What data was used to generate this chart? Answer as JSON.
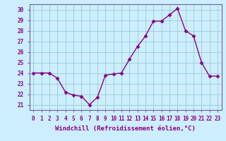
{
  "x": [
    0,
    1,
    2,
    3,
    4,
    5,
    6,
    7,
    8,
    9,
    10,
    11,
    12,
    13,
    14,
    15,
    16,
    17,
    18,
    19,
    20,
    21,
    22,
    23
  ],
  "y": [
    24,
    24,
    24,
    23.5,
    22.2,
    21.9,
    21.8,
    21.0,
    21.7,
    23.8,
    23.9,
    24.0,
    25.3,
    26.5,
    27.5,
    28.9,
    28.9,
    29.5,
    30.1,
    28.0,
    27.5,
    25.0,
    23.7,
    23.7
  ],
  "line_color": "#880088",
  "marker": "D",
  "markersize": 2.5,
  "linewidth": 1.0,
  "bg_color": "#cceeff",
  "grid_color": "#99cccc",
  "xlabel": "Windchill (Refroidissement éolien,°C)",
  "xlabel_fontsize": 6.5,
  "tick_fontsize": 5.5,
  "ylim": [
    20.5,
    30.5
  ],
  "yticks": [
    21,
    22,
    23,
    24,
    25,
    26,
    27,
    28,
    29,
    30
  ],
  "xticks": [
    0,
    1,
    2,
    3,
    4,
    5,
    6,
    7,
    8,
    9,
    10,
    11,
    12,
    13,
    14,
    15,
    16,
    17,
    18,
    19,
    20,
    21,
    22,
    23
  ]
}
